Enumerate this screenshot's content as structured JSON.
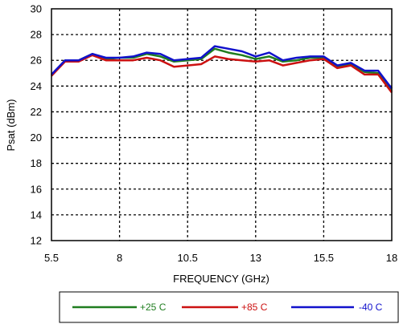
{
  "chart_data": {
    "type": "line",
    "title": "",
    "xlabel": "FREQUENCY (GHz)",
    "ylabel": "Psat (dBm)",
    "xlim": [
      5.5,
      18
    ],
    "ylim": [
      12,
      30
    ],
    "xticks": [
      5.5,
      8,
      10.5,
      13,
      15.5,
      18
    ],
    "yticks": [
      12,
      14,
      16,
      18,
      20,
      22,
      24,
      26,
      28,
      30
    ],
    "xtick_labels": [
      "5.5",
      "8",
      "10.5",
      "13",
      "15.5",
      "18"
    ],
    "ytick_labels": [
      "12",
      "14",
      "16",
      "18",
      "20",
      "22",
      "24",
      "26",
      "28",
      "30"
    ],
    "grid": true,
    "legend_position": "bottom",
    "x": [
      5.5,
      6.0,
      6.5,
      7.0,
      7.5,
      8.0,
      8.5,
      9.0,
      9.5,
      10.0,
      10.5,
      11.0,
      11.5,
      12.0,
      12.5,
      13.0,
      13.5,
      14.0,
      14.5,
      15.0,
      15.5,
      16.0,
      16.5,
      17.0,
      17.5,
      18.0
    ],
    "series": [
      {
        "name": "+25 C",
        "color": "#1f7d1f",
        "values": [
          24.8,
          26.0,
          26.0,
          26.5,
          26.1,
          26.2,
          26.2,
          26.5,
          26.3,
          25.9,
          26.0,
          26.1,
          26.9,
          26.6,
          26.4,
          26.1,
          26.3,
          25.9,
          26.0,
          26.2,
          26.2,
          25.5,
          25.7,
          25.1,
          25.0,
          23.6
        ]
      },
      {
        "name": "+85 C",
        "color": "#cc1111",
        "values": [
          24.8,
          25.9,
          25.9,
          26.4,
          26.0,
          26.0,
          26.0,
          26.2,
          26.0,
          25.5,
          25.6,
          25.7,
          26.3,
          26.1,
          26.0,
          25.9,
          26.0,
          25.6,
          25.8,
          26.0,
          26.1,
          25.4,
          25.6,
          24.9,
          24.9,
          23.5
        ]
      },
      {
        "name": "-40 C",
        "color": "#1111cc",
        "values": [
          24.9,
          26.0,
          26.0,
          26.5,
          26.2,
          26.2,
          26.3,
          26.6,
          26.5,
          26.0,
          26.1,
          26.2,
          27.1,
          26.9,
          26.7,
          26.3,
          26.6,
          26.0,
          26.2,
          26.3,
          26.3,
          25.6,
          25.8,
          25.2,
          25.2,
          23.8
        ]
      }
    ]
  }
}
